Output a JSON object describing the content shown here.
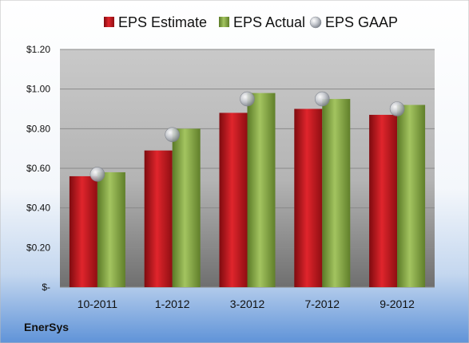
{
  "company": "EnerSys",
  "colors": {
    "estimate": "#c8161d",
    "actual": "#8db04a",
    "gaap": "#b8bcc4"
  },
  "chart_data": {
    "type": "bar",
    "categories": [
      "10-2011",
      "1-2012",
      "3-2012",
      "7-2012",
      "9-2012"
    ],
    "series": [
      {
        "name": "EPS Estimate",
        "style": "bar",
        "values": [
          0.56,
          0.69,
          0.88,
          0.9,
          0.87
        ]
      },
      {
        "name": "EPS Actual",
        "style": "bar",
        "values": [
          0.58,
          0.8,
          0.98,
          0.95,
          0.92
        ]
      },
      {
        "name": "EPS GAAP",
        "style": "marker",
        "values": [
          0.57,
          0.77,
          0.95,
          0.95,
          0.9
        ]
      }
    ],
    "y_ticks": [
      {
        "value": 1.2,
        "label": "$1.20"
      },
      {
        "value": 1.0,
        "label": "$1.00"
      },
      {
        "value": 0.8,
        "label": "$0.80"
      },
      {
        "value": 0.6,
        "label": "$0.60"
      },
      {
        "value": 0.4,
        "label": "$0.40"
      },
      {
        "value": 0.2,
        "label": "$0.20"
      },
      {
        "value": 0,
        "label": "$-"
      }
    ],
    "ylim": [
      0,
      1.2
    ],
    "grid": true,
    "legend_position": "top"
  }
}
